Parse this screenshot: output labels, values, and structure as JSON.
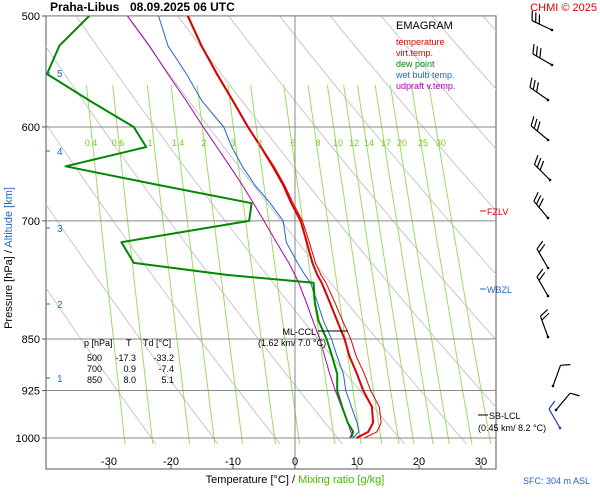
{
  "header": {
    "station": "Praha-Libus",
    "datetime": "08.09.2025 06 UTC",
    "credit": "CHMI © 2025"
  },
  "legend": {
    "title": "EMAGRAM",
    "items": [
      {
        "label": "temperature",
        "color": "#dd0000"
      },
      {
        "label": "virt.temp.",
        "color": "#dd0000"
      },
      {
        "label": "dew point",
        "color": "#008800"
      },
      {
        "label": "wet bulb temp.",
        "color": "#2266cc"
      },
      {
        "label": "udpraft v.temp.",
        "color": "#aa00aa"
      }
    ]
  },
  "axes": {
    "ylabel_pressure": "Pressure [hPa]",
    "ylabel_sep": " / ",
    "ylabel_altitude": "Altitude [km]",
    "xlabel_temp": "Temperature [°C]",
    "xlabel_sep": " / ",
    "xlabel_mix": "Mixing ratio [g/kg]",
    "pressure_ticks": [
      "500",
      "600",
      "700",
      "850",
      "925",
      "1000"
    ],
    "altitude_ticks": [
      "5",
      "4",
      "3",
      "2",
      "1"
    ],
    "temp_ticks": [
      "-30",
      "-20",
      "-10",
      "0",
      "10",
      "20",
      "30"
    ],
    "mixing_ticks": [
      "0.4",
      "0.6",
      "1",
      "1.4",
      "2",
      "3",
      "4",
      "6",
      "8",
      "10",
      "12",
      "14",
      "17",
      "20",
      "25",
      "30"
    ]
  },
  "annotations": {
    "fzlv": "FZLV",
    "wbzl": "WBZL",
    "mlccl_title": "ML-CCL",
    "mlccl_value": "(1.62 km/ 7.0 °C)",
    "sblcl_title": "SB-LCL",
    "sblcl_value": "(0.45 km/ 8.2 °C)",
    "sfc": "SFC: 304 m ASL"
  },
  "table": {
    "headers": [
      "p [hPa]",
      "T",
      "Td [°C]"
    ],
    "rows": [
      [
        "500",
        "-17.3",
        "-33.2"
      ],
      [
        "700",
        "0.9",
        "-7.4"
      ],
      [
        "850",
        "8.0",
        "5.1"
      ]
    ]
  },
  "chart_data": {
    "type": "line",
    "title": "Praha-Libus 08.09.2025 06 UTC",
    "xlabel": "Temperature [°C] / Mixing ratio [g/kg]",
    "ylabel": "Pressure [hPa] / Altitude [km]",
    "xlim": [
      -40,
      32
    ],
    "ylim": [
      1010,
      500
    ],
    "y_scale": "log",
    "x": "temperature_C",
    "y": "pressure_hPa",
    "pressure_levels": [
      1000,
      990,
      975,
      950,
      925,
      900,
      875,
      850,
      825,
      800,
      775,
      765,
      750,
      725,
      700,
      680,
      660,
      640,
      620,
      600,
      575,
      550,
      525,
      500
    ],
    "series": [
      {
        "name": "temperature",
        "color": "#dd0000",
        "values": [
          9.9,
          11.8,
          12.6,
          12.4,
          11.0,
          10.0,
          8.8,
          8.0,
          6.8,
          5.6,
          4.3,
          3.6,
          2.8,
          1.9,
          0.9,
          -0.6,
          -1.9,
          -3.6,
          -5.5,
          -7.6,
          -10.0,
          -12.6,
          -15.1,
          -17.3
        ]
      },
      {
        "name": "virt.temp.",
        "color": "#dd0000",
        "values": [
          11.2,
          13.2,
          13.9,
          13.6,
          12.2,
          11.2,
          9.9,
          9.0,
          7.7,
          6.4,
          5.0,
          4.2,
          3.3,
          2.3,
          1.2,
          -0.3,
          -1.7,
          -3.4,
          -5.4,
          -7.5,
          -9.9,
          -12.5,
          -15.0,
          -17.2
        ]
      },
      {
        "name": "dew point",
        "color": "#008800",
        "values": [
          8.9,
          9.4,
          8.5,
          7.6,
          6.8,
          6.8,
          6.0,
          5.1,
          3.8,
          3.2,
          3.0,
          -11.0,
          -26.0,
          -28.0,
          -7.4,
          -7.0,
          -22.0,
          -37.0,
          -24.0,
          -26.0,
          -33.0,
          -40.0,
          -38.0,
          -33.2
        ]
      },
      {
        "name": "wet bulb temp.",
        "color": "#2266cc",
        "values": [
          9.3,
          10.3,
          10.0,
          9.1,
          8.2,
          7.8,
          6.8,
          5.9,
          4.6,
          3.6,
          2.5,
          1.6,
          0.4,
          -1.4,
          -1.9,
          -4.0,
          -6.5,
          -8.5,
          -10.2,
          -11.5,
          -15.0,
          -17.5,
          -20.5,
          -22.0
        ]
      },
      {
        "name": "udpraft v.temp.",
        "color": "#aa00aa",
        "values": [
          9.5,
          9.0,
          8.5,
          7.5,
          6.5,
          5.6,
          4.8,
          4.0,
          2.9,
          1.8,
          0.6,
          0.0,
          -1.0,
          -3.0,
          -5.0,
          -6.7,
          -8.5,
          -10.5,
          -12.6,
          -14.8,
          -17.5,
          -20.5,
          -23.5,
          -27.0
        ]
      }
    ],
    "grid": true,
    "legend_position": "top-right"
  }
}
